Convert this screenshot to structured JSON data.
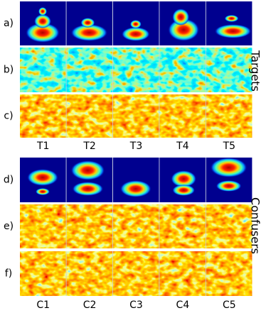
{
  "row_labels": [
    "a)",
    "b)",
    "c)",
    "d)",
    "e)",
    "f)"
  ],
  "group_labels": [
    "Targets",
    "Confusers"
  ],
  "target_labels": [
    "T1",
    "T2",
    "T3",
    "T4",
    "T5"
  ],
  "confuser_labels": [
    "C1",
    "C2",
    "C3",
    "C4",
    "C5"
  ]
}
